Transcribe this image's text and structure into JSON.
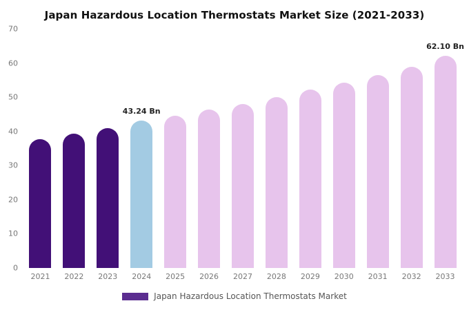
{
  "title": "Japan Hazardous Location Thermostats Market Size (2021-2033)",
  "legend": {
    "label": "Japan Hazardous Location Thermostats Market",
    "swatch_color": "#5b2d90"
  },
  "colors": {
    "historical": "#421077",
    "current_year": "#a3cbe3",
    "forecast": "#e7c4ec"
  },
  "chart_data": {
    "type": "bar",
    "title": "Japan Hazardous Location Thermostats Market Size (2021-2033)",
    "xlabel": "",
    "ylabel": "",
    "categories": [
      "2021",
      "2022",
      "2023",
      "2024",
      "2025",
      "2026",
      "2027",
      "2028",
      "2029",
      "2030",
      "2031",
      "2032",
      "2033"
    ],
    "values": [
      37.8,
      39.4,
      41.0,
      43.24,
      44.5,
      46.3,
      48.1,
      50.0,
      52.2,
      54.3,
      56.5,
      58.9,
      62.1
    ],
    "bar_colors": [
      "#421077",
      "#421077",
      "#421077",
      "#a3cbe3",
      "#e7c4ec",
      "#e7c4ec",
      "#e7c4ec",
      "#e7c4ec",
      "#e7c4ec",
      "#e7c4ec",
      "#e7c4ec",
      "#e7c4ec",
      "#e7c4ec"
    ],
    "annotations": [
      {
        "category": "2024",
        "text": "43.24 Bn"
      },
      {
        "category": "2033",
        "text": "62.10 Bn"
      }
    ],
    "ylim": [
      0,
      70
    ],
    "yticks": [
      0,
      10,
      20,
      30,
      40,
      50,
      60,
      70
    ],
    "grid": false,
    "legend_position": "bottom",
    "legend_entries": [
      "Japan Hazardous Location Thermostats Market"
    ]
  }
}
